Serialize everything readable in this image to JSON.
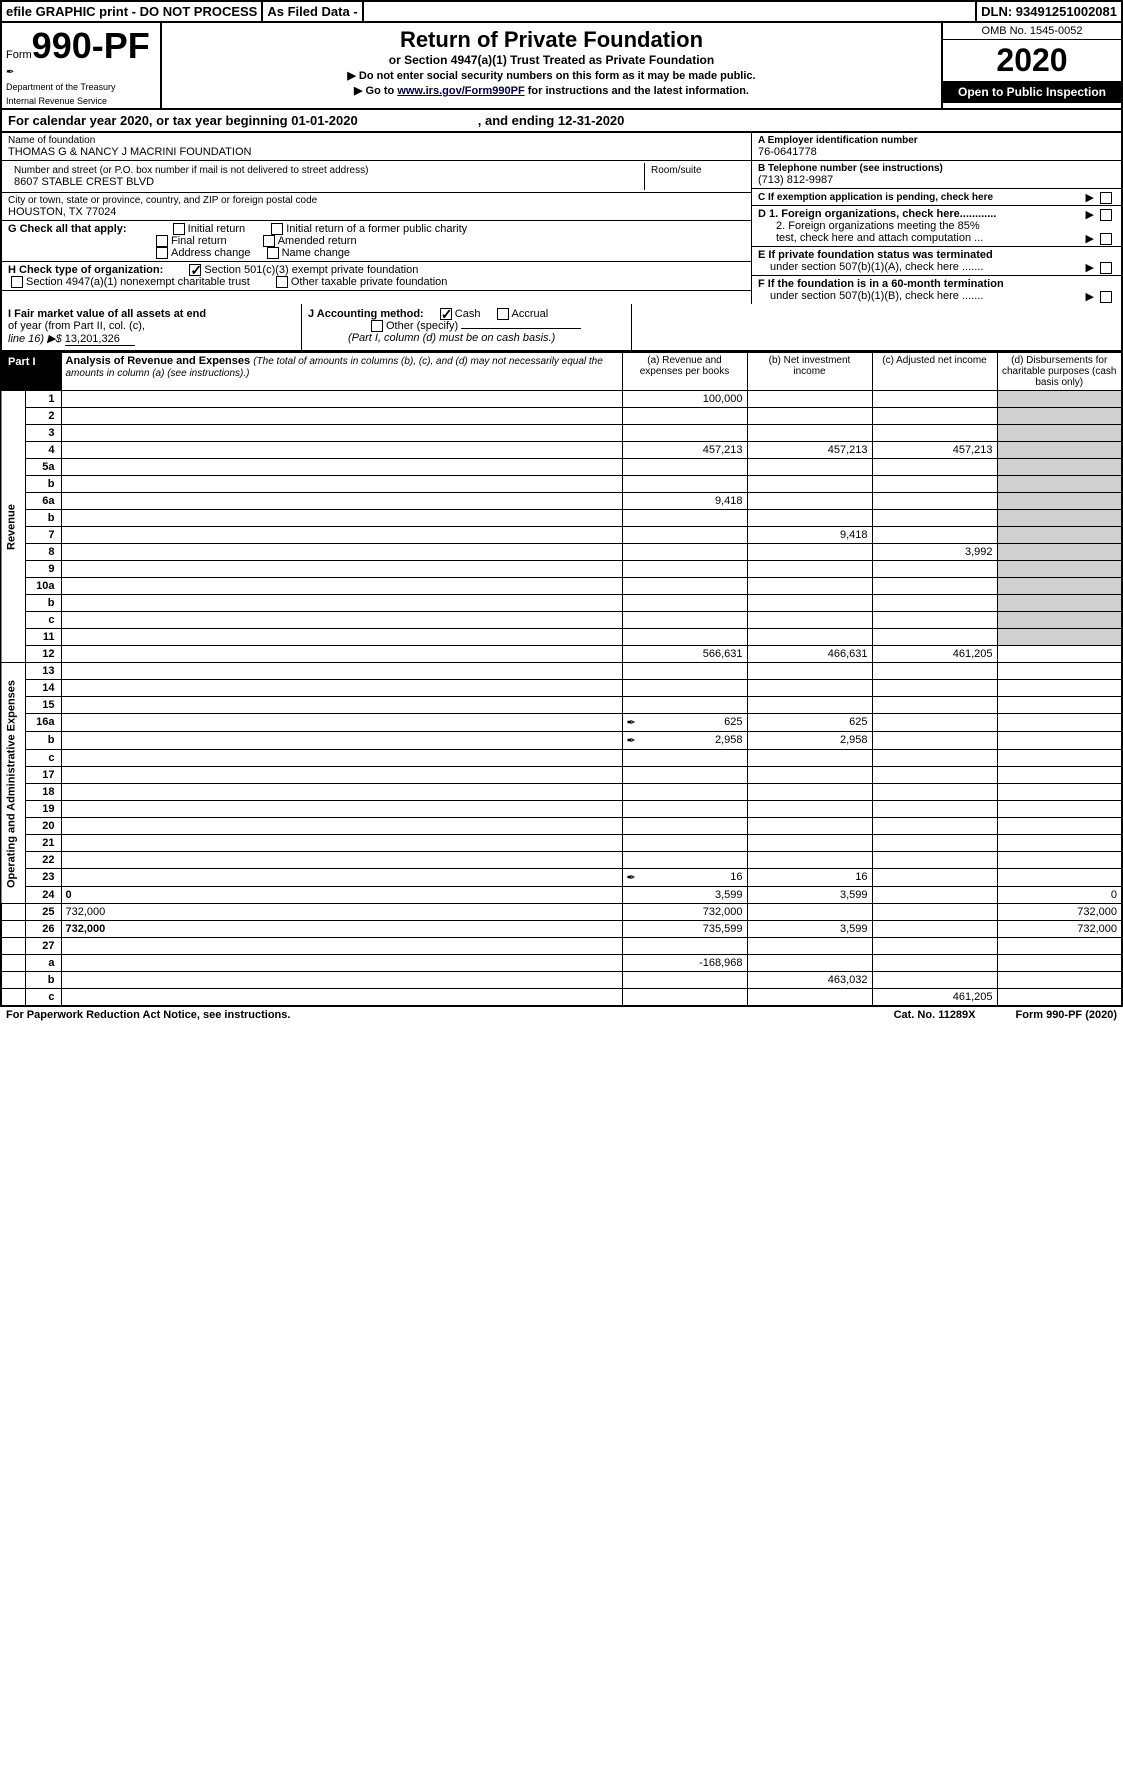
{
  "topbar": {
    "efile": "efile GRAPHIC print - DO NOT PROCESS",
    "asfiled": "As Filed Data -",
    "dln": "DLN: 93491251002081"
  },
  "header": {
    "form_prefix": "Form",
    "form_no": "990-PF",
    "dept1": "Department of the Treasury",
    "dept2": "Internal Revenue Service",
    "title": "Return of Private Foundation",
    "subtitle": "or Section 4947(a)(1) Trust Treated as Private Foundation",
    "note1": "▶ Do not enter social security numbers on this form as it may be made public.",
    "note2_pre": "▶ Go to ",
    "note2_link": "www.irs.gov/Form990PF",
    "note2_post": " for instructions and the latest information.",
    "omb": "OMB No. 1545-0052",
    "year": "2020",
    "open_public": "Open to Public Inspection"
  },
  "cal": {
    "text": "For calendar year 2020, or tax year beginning 01-01-2020",
    "end": ", and ending 12-31-2020"
  },
  "info": {
    "name_lbl": "Name of foundation",
    "name": "THOMAS G & NANCY J MACRINI FOUNDATION",
    "addr_lbl": "Number and street (or P.O. box number if mail is not delivered to street address)",
    "addr": "8607 STABLE CREST BLVD",
    "room_lbl": "Room/suite",
    "city_lbl": "City or town, state or province, country, and ZIP or foreign postal code",
    "city": "HOUSTON, TX  77024",
    "ein_lbl": "A Employer identification number",
    "ein": "76-0641778",
    "tel_lbl": "B Telephone number (see instructions)",
    "tel": "(713) 812-9987",
    "c_lbl": "C If exemption application is pending, check here",
    "d1": "D 1. Foreign organizations, check here............",
    "d2a": "2. Foreign organizations meeting the 85%",
    "d2b": "test, check here and attach computation ...",
    "e1": "E  If private foundation status was terminated",
    "e2": "under section 507(b)(1)(A), check here .......",
    "f1": "F  If the foundation is in a 60-month termination",
    "f2": "under section 507(b)(1)(B), check here .......",
    "g_lbl": "G Check all that apply:",
    "g_opts": [
      "Initial return",
      "Initial return of a former public charity",
      "Final return",
      "Amended return",
      "Address change",
      "Name change"
    ],
    "h_lbl": "H Check type of organization:",
    "h1": "Section 501(c)(3) exempt private foundation",
    "h2": "Section 4947(a)(1) nonexempt charitable trust",
    "h3": "Other taxable private foundation",
    "i_lbl1": "I Fair market value of all assets at end",
    "i_lbl2": "of year (from Part II, col. (c),",
    "i_lbl3": "line 16) ▶$ ",
    "i_val": "13,201,326",
    "j_lbl": "J Accounting method:",
    "j_cash": "Cash",
    "j_accr": "Accrual",
    "j_other": "Other (specify)",
    "j_note": "(Part I, column (d) must be on cash basis.)"
  },
  "part1": {
    "part_lbl": "Part I",
    "hdr_title": "Analysis of Revenue and Expenses",
    "hdr_sub": "(The total of amounts in columns (b), (c), and (d) may not necessarily equal the amounts in column (a) (see instructions).)",
    "col_a": "(a)   Revenue and expenses per books",
    "col_b": "(b)   Net investment income",
    "col_c": "(c)   Adjusted net income",
    "col_d": "(d)  Disbursements for charitable purposes (cash basis only)",
    "side_rev": "Revenue",
    "side_exp": "Operating and Administrative Expenses",
    "rows": [
      {
        "n": "1",
        "d": "",
        "a": "100,000",
        "b": "",
        "c": ""
      },
      {
        "n": "2",
        "d": "",
        "a": "",
        "b": "",
        "c": ""
      },
      {
        "n": "3",
        "d": "",
        "a": "",
        "b": "",
        "c": ""
      },
      {
        "n": "4",
        "d": "",
        "a": "457,213",
        "b": "457,213",
        "c": "457,213"
      },
      {
        "n": "5a",
        "d": "",
        "a": "",
        "b": "",
        "c": ""
      },
      {
        "n": "b",
        "d": "",
        "a": "",
        "b": "",
        "c": ""
      },
      {
        "n": "6a",
        "d": "",
        "a": "9,418",
        "b": "",
        "c": ""
      },
      {
        "n": "b",
        "d": "",
        "a": "",
        "b": "",
        "c": ""
      },
      {
        "n": "7",
        "d": "",
        "a": "",
        "b": "9,418",
        "c": ""
      },
      {
        "n": "8",
        "d": "",
        "a": "",
        "b": "",
        "c": "3,992"
      },
      {
        "n": "9",
        "d": "",
        "a": "",
        "b": "",
        "c": ""
      },
      {
        "n": "10a",
        "d": "",
        "a": "",
        "b": "",
        "c": ""
      },
      {
        "n": "b",
        "d": "",
        "a": "",
        "b": "",
        "c": ""
      },
      {
        "n": "c",
        "d": "",
        "a": "",
        "b": "",
        "c": ""
      },
      {
        "n": "11",
        "d": "",
        "a": "",
        "b": "",
        "c": ""
      },
      {
        "n": "12",
        "d": "",
        "a": "566,631",
        "b": "466,631",
        "c": "461,205",
        "bold": true
      },
      {
        "n": "13",
        "d": "",
        "a": "",
        "b": "",
        "c": ""
      },
      {
        "n": "14",
        "d": "",
        "a": "",
        "b": "",
        "c": ""
      },
      {
        "n": "15",
        "d": "",
        "a": "",
        "b": "",
        "c": ""
      },
      {
        "n": "16a",
        "d": "",
        "a": "625",
        "b": "625",
        "c": "",
        "icon": true
      },
      {
        "n": "b",
        "d": "",
        "a": "2,958",
        "b": "2,958",
        "c": "",
        "icon": true
      },
      {
        "n": "c",
        "d": "",
        "a": "",
        "b": "",
        "c": ""
      },
      {
        "n": "17",
        "d": "",
        "a": "",
        "b": "",
        "c": ""
      },
      {
        "n": "18",
        "d": "",
        "a": "",
        "b": "",
        "c": ""
      },
      {
        "n": "19",
        "d": "",
        "a": "",
        "b": "",
        "c": ""
      },
      {
        "n": "20",
        "d": "",
        "a": "",
        "b": "",
        "c": ""
      },
      {
        "n": "21",
        "d": "",
        "a": "",
        "b": "",
        "c": ""
      },
      {
        "n": "22",
        "d": "",
        "a": "",
        "b": "",
        "c": ""
      },
      {
        "n": "23",
        "d": "",
        "a": "16",
        "b": "16",
        "c": "",
        "icon": true
      },
      {
        "n": "24",
        "d": "0",
        "a": "3,599",
        "b": "3,599",
        "c": "",
        "bold": true
      },
      {
        "n": "25",
        "d": "732,000",
        "a": "732,000",
        "b": "",
        "c": ""
      },
      {
        "n": "26",
        "d": "732,000",
        "a": "735,599",
        "b": "3,599",
        "c": "",
        "bold": true
      },
      {
        "n": "27",
        "d": "",
        "a": "",
        "b": "",
        "c": ""
      },
      {
        "n": "a",
        "d": "",
        "a": "-168,968",
        "b": "",
        "c": "",
        "bold": true
      },
      {
        "n": "b",
        "d": "",
        "a": "",
        "b": "463,032",
        "c": "",
        "bold": true
      },
      {
        "n": "c",
        "d": "",
        "a": "",
        "b": "",
        "c": "461,205",
        "bold": true
      }
    ]
  },
  "foot": {
    "left": "For Paperwork Reduction Act Notice, see instructions.",
    "mid": "Cat. No. 11289X",
    "right": "Form 990-PF (2020)"
  },
  "style": {
    "shaded_cells": "#d0d0d0",
    "rev_span_start": 0,
    "rev_span_end": 15,
    "exp_span_start": 16,
    "exp_span_end": 29
  }
}
